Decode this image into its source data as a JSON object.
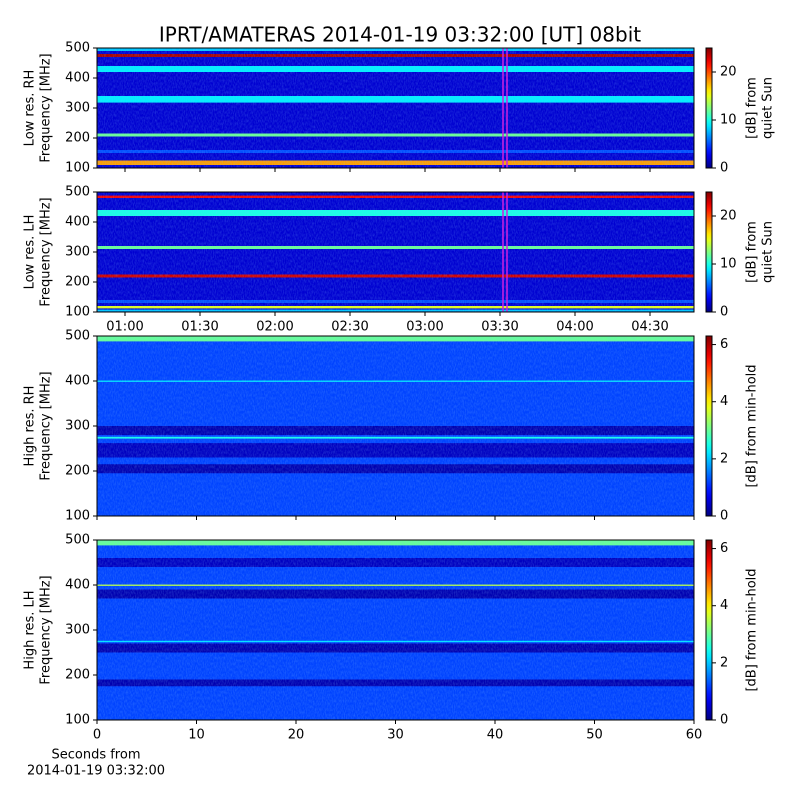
{
  "chart_data": [
    {
      "type": "spectrogram",
      "title": "IPRT/AMATERAS 2014-01-19 03:32:00 [UT]   08bit",
      "ylabel": [
        "Low res. RH",
        "Frequency [MHz]"
      ],
      "ylim": [
        100,
        500
      ],
      "yticks": [
        100,
        200,
        300,
        400,
        500
      ],
      "xlim": [
        48.8,
        287.6
      ],
      "xticks": [
        60,
        90,
        120,
        150,
        180,
        210,
        240,
        270
      ],
      "xtick_labels": false,
      "marker_x": 212,
      "marker_color": "#d020e0",
      "clim": [
        0,
        25
      ],
      "colorbar_ticks": [
        0,
        10,
        20
      ],
      "colorbar_label": [
        "[dB] from",
        "quiet Sun"
      ],
      "background": 2,
      "bands": [
        {
          "y": [
            110,
            125
          ],
          "value": 18
        },
        {
          "y": [
            150,
            160
          ],
          "value": 5
        },
        {
          "y": [
            205,
            215
          ],
          "value": 12
        },
        {
          "y": [
            318,
            340
          ],
          "value": 9
        },
        {
          "y": [
            420,
            440
          ],
          "value": 9
        },
        {
          "y": [
            470,
            480
          ],
          "value": 24
        },
        {
          "y": [
            490,
            500
          ],
          "value": 8
        }
      ]
    },
    {
      "type": "spectrogram",
      "ylabel": [
        "Low res. LH",
        "Frequency [MHz]"
      ],
      "ylim": [
        100,
        500
      ],
      "yticks": [
        100,
        200,
        300,
        400,
        500
      ],
      "xlim": [
        48.8,
        287.6
      ],
      "xticks": [
        {
          "value": 60,
          "label": "01:00"
        },
        {
          "value": 90,
          "label": "01:30"
        },
        {
          "value": 120,
          "label": "02:00"
        },
        {
          "value": 150,
          "label": "02:30"
        },
        {
          "value": 180,
          "label": "03:00"
        },
        {
          "value": 210,
          "label": "03:30"
        },
        {
          "value": 240,
          "label": "04:00"
        },
        {
          "value": 270,
          "label": "04:30"
        }
      ],
      "xtick_labels": true,
      "marker_x": 212,
      "marker_color": "#d020e0",
      "clim": [
        0,
        25
      ],
      "colorbar_ticks": [
        0,
        10,
        20
      ],
      "colorbar_label": [
        "[dB] from",
        "quiet Sun"
      ],
      "background": 2,
      "bands": [
        {
          "y": [
            102,
            108
          ],
          "value": 8
        },
        {
          "y": [
            112,
            120
          ],
          "value": 15
        },
        {
          "y": [
            130,
            140
          ],
          "value": 5
        },
        {
          "y": [
            215,
            225
          ],
          "value": 23
        },
        {
          "y": [
            310,
            320
          ],
          "value": 12
        },
        {
          "y": [
            420,
            440
          ],
          "value": 10
        },
        {
          "y": [
            480,
            488
          ],
          "value": 22
        }
      ]
    },
    {
      "type": "spectrogram",
      "ylabel": [
        "High res. RH",
        "Frequency [MHz]"
      ],
      "ylim": [
        100,
        500
      ],
      "yticks": [
        100,
        200,
        300,
        400,
        500
      ],
      "xlim": [
        0,
        60
      ],
      "xticks": [
        0,
        10,
        20,
        30,
        40,
        50,
        60
      ],
      "xtick_labels": false,
      "clim": [
        0,
        6.3
      ],
      "colorbar_ticks": [
        0,
        2,
        4,
        6
      ],
      "colorbar_label": [
        "[dB] from min-hold"
      ],
      "background": 1.2,
      "bands": [
        {
          "y": [
            195,
            215
          ],
          "value": 0.3
        },
        {
          "y": [
            230,
            262
          ],
          "value": 0.4
        },
        {
          "y": [
            272,
            276
          ],
          "value": 2.5
        },
        {
          "y": [
            280,
            300
          ],
          "value": 0.3
        },
        {
          "y": [
            398,
            401
          ],
          "value": 2.2
        },
        {
          "y": [
            488,
            500
          ],
          "value": 3
        }
      ]
    },
    {
      "type": "spectrogram",
      "ylabel": [
        "High res. LH",
        "Frequency [MHz]"
      ],
      "ylim": [
        100,
        500
      ],
      "yticks": [
        100,
        200,
        300,
        400,
        500
      ],
      "xlim": [
        0,
        60
      ],
      "xticks": [
        0,
        10,
        20,
        30,
        40,
        50,
        60
      ],
      "xtick_labels": true,
      "xlabel": [
        "Seconds from",
        "2014-01-19 03:32:00"
      ],
      "clim": [
        0,
        6.3
      ],
      "colorbar_ticks": [
        0,
        2,
        4,
        6
      ],
      "colorbar_label": [
        "[dB] from min-hold"
      ],
      "background": 1.2,
      "bands": [
        {
          "y": [
            175,
            190
          ],
          "value": 0.3
        },
        {
          "y": [
            250,
            270
          ],
          "value": 0.3
        },
        {
          "y": [
            273,
            276
          ],
          "value": 2.2
        },
        {
          "y": [
            370,
            390
          ],
          "value": 0.3
        },
        {
          "y": [
            398,
            401
          ],
          "value": 3.5
        },
        {
          "y": [
            440,
            460
          ],
          "value": 0.4
        },
        {
          "y": [
            488,
            500
          ],
          "value": 3
        }
      ]
    }
  ]
}
